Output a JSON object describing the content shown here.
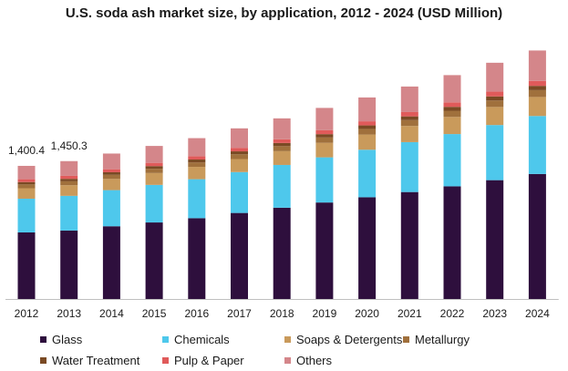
{
  "chart_data": {
    "type": "bar",
    "stacked": true,
    "title": "U.S. soda ash market size, by application, 2012 - 2024 (USD Million)",
    "categories": [
      "2012",
      "2013",
      "2014",
      "2015",
      "2016",
      "2017",
      "2018",
      "2019",
      "2020",
      "2021",
      "2022",
      "2023",
      "2024"
    ],
    "series": [
      {
        "name": "Glass",
        "color": "#2e0f3d",
        "values": [
          700,
          720,
          765,
          805,
          850,
          905,
          960,
          1015,
          1070,
          1125,
          1185,
          1250,
          1315
        ]
      },
      {
        "name": "Chemicals",
        "color": "#4ec8ec",
        "values": [
          355,
          365,
          380,
          395,
          410,
          430,
          450,
          475,
          500,
          525,
          550,
          580,
          610
        ]
      },
      {
        "name": "Soaps & Detergents",
        "color": "#c99a5b",
        "values": [
          110,
          112,
          118,
          125,
          130,
          137,
          145,
          153,
          160,
          170,
          180,
          190,
          200
        ]
      },
      {
        "name": "Metallurgy",
        "color": "#a0703c",
        "values": [
          40,
          41,
          43,
          45,
          47,
          50,
          53,
          56,
          59,
          62,
          65,
          68,
          72
        ]
      },
      {
        "name": "Water Treatment",
        "color": "#7a4a24",
        "values": [
          25,
          26,
          27,
          28,
          30,
          31,
          33,
          35,
          37,
          39,
          41,
          43,
          45
        ]
      },
      {
        "name": "Pulp & Paper",
        "color": "#e05a5a",
        "values": [
          30,
          31,
          32,
          34,
          35,
          37,
          39,
          41,
          43,
          45,
          47,
          50,
          52
        ]
      },
      {
        "name": "Others",
        "color": "#d4868a",
        "values": [
          140.4,
          155.3,
          165,
          178,
          190,
          205,
          220,
          235,
          251,
          269,
          287,
          304,
          320
        ]
      }
    ],
    "totals": [
      1400.4,
      1450.3,
      1530,
      1610,
      1692,
      1795,
      1900,
      2010,
      2120,
      2235,
      2355,
      2485,
      2614
    ],
    "data_labels": [
      {
        "category": "2012",
        "text": "1,400.4"
      },
      {
        "category": "2013",
        "text": "1,450.3"
      }
    ],
    "ylim": [
      0,
      2800
    ],
    "xlabel": "",
    "ylabel": "",
    "grid": false,
    "legend_position": "bottom"
  }
}
